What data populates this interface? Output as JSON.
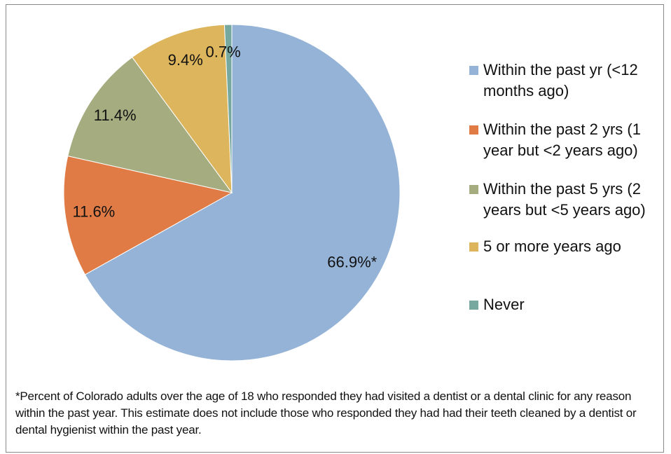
{
  "chart_data": {
    "type": "pie",
    "categories": [
      "Within the past yr (<12 months ago)",
      "Within the past 2 yrs (1 year but <2 years ago)",
      "Within the past 5 yrs (2 years but <5 years ago)",
      "5 or more years ago",
      "Never"
    ],
    "values": [
      66.9,
      11.6,
      11.4,
      9.4,
      0.7
    ],
    "value_labels": [
      "66.9%*",
      "11.6%",
      "11.4%",
      "9.4%",
      "0.7%"
    ],
    "colors": [
      "#95b3d7",
      "#e07b45",
      "#a5ad80",
      "#ddb55c",
      "#76a8a0"
    ],
    "legend": "right",
    "footnote": "*Percent of Colorado adults over the age of 18 who responded they had visited a dentist or a dental clinic for any reason within the past year. This estimate does not include those who responded they had had their teeth cleaned by a dentist or dental hygienist within the past year."
  }
}
